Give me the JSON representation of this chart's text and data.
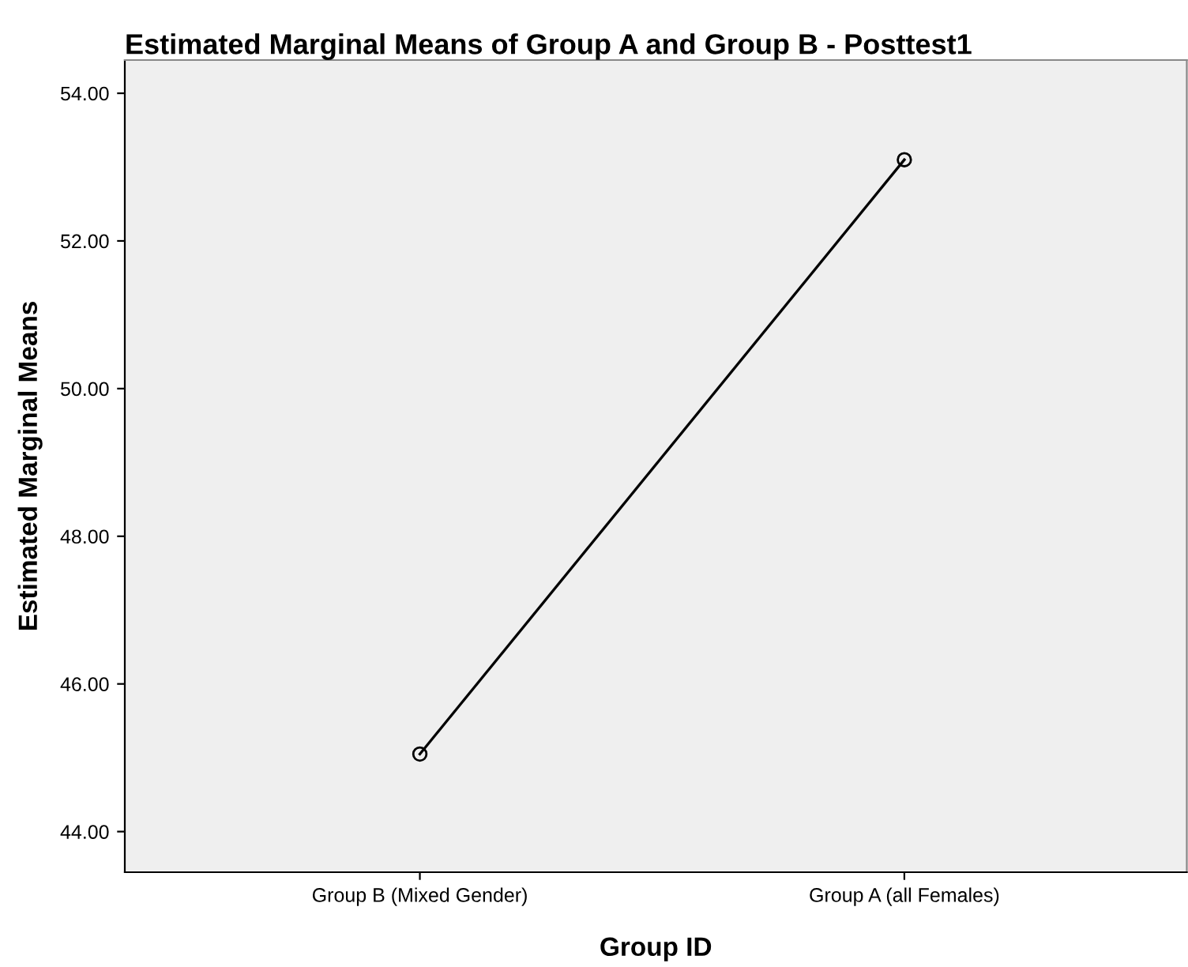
{
  "chart_data": {
    "type": "line",
    "title": "Estimated Marginal Means of Group A and Group B - Posttest1",
    "xlabel": "Group ID",
    "ylabel": "Estimated Marginal Means",
    "categories": [
      "Group B (Mixed Gender)",
      "Group A (all Females)"
    ],
    "series": [
      {
        "color": "#000000",
        "values": [
          45.05,
          53.1
        ]
      }
    ],
    "ylim": [
      43.45,
      54.45
    ],
    "yticks": [
      {
        "value": 44,
        "label": "44.00"
      },
      {
        "value": 46,
        "label": "46.00"
      },
      {
        "value": 48,
        "label": "48.00"
      },
      {
        "value": 50,
        "label": "50.00"
      },
      {
        "value": 52,
        "label": "52.00"
      },
      {
        "value": 54,
        "label": "54.00"
      }
    ],
    "marker": "circle",
    "line_style": "solid"
  }
}
